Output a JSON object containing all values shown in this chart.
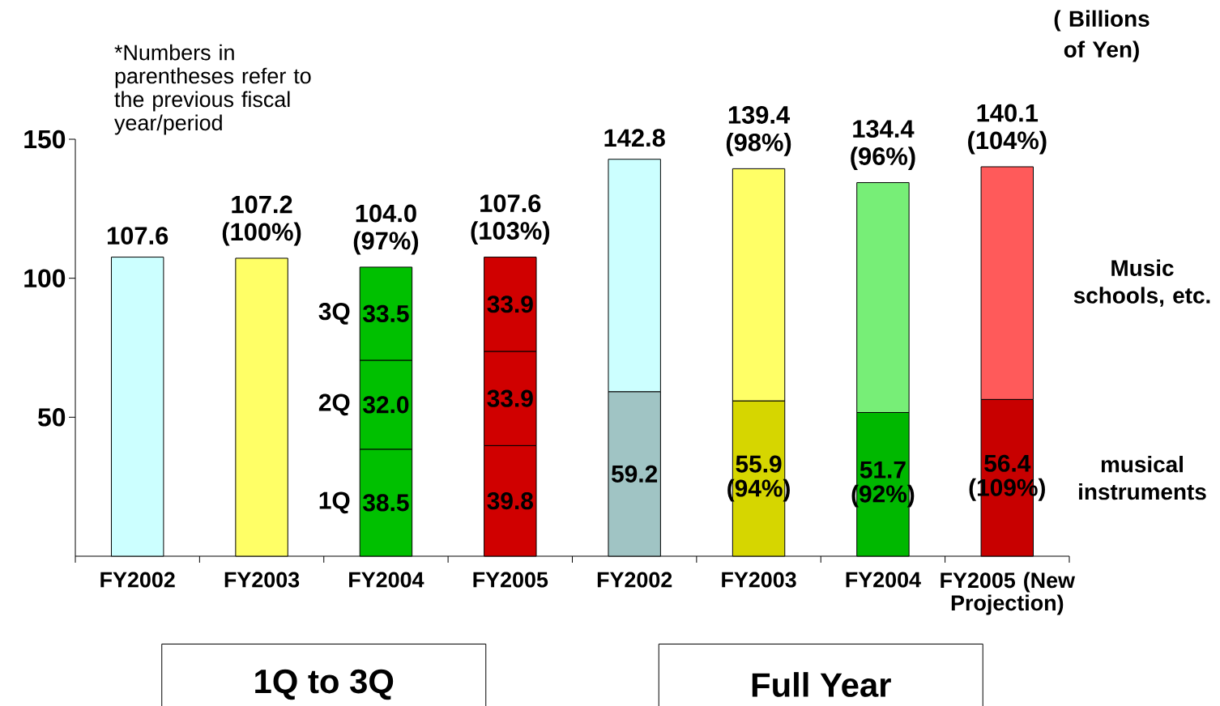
{
  "chart_data": {
    "type": "bar",
    "stacked": true,
    "ylabel": "( Billions of Yen)",
    "categories": [
      "FY2002",
      "FY2003",
      "FY2004",
      "FY2005",
      "FY2002",
      "FY2003",
      "FY2004",
      "FY2005 (New Projection)"
    ],
    "series": [
      {
        "colors": [
          "#ccffff",
          "#ffff66",
          null,
          null,
          null,
          null,
          null,
          null
        ],
        "values": [
          107.6,
          107.2,
          null,
          null,
          null,
          null,
          null,
          null
        ]
      },
      {
        "name": "1Q",
        "colors": [
          null,
          null,
          "#00c000",
          "#d00000",
          null,
          null,
          null,
          null
        ],
        "values": [
          null,
          null,
          38.5,
          39.8,
          null,
          null,
          null,
          null
        ],
        "value_labels": [
          null,
          null,
          "38.5",
          "39.8",
          null,
          null,
          null,
          null
        ]
      },
      {
        "name": "2Q",
        "colors": [
          null,
          null,
          "#00c000",
          "#d00000",
          null,
          null,
          null,
          null
        ],
        "values": [
          null,
          null,
          32.0,
          33.9,
          null,
          null,
          null,
          null
        ],
        "value_labels": [
          null,
          null,
          "32.0",
          "33.9",
          null,
          null,
          null,
          null
        ]
      },
      {
        "name": "3Q",
        "colors": [
          null,
          null,
          "#00c000",
          "#d00000",
          null,
          null,
          null,
          null
        ],
        "values": [
          null,
          null,
          33.5,
          33.9,
          null,
          null,
          null,
          null
        ],
        "value_labels": [
          null,
          null,
          "33.5",
          "33.9",
          null,
          null,
          null,
          null
        ]
      },
      {
        "name": "musical instruments",
        "colors": [
          null,
          null,
          null,
          null,
          "#a0c4c4",
          "#d6d600",
          "#00b800",
          "#c80000"
        ],
        "values": [
          null,
          null,
          null,
          null,
          59.2,
          55.9,
          51.7,
          56.4
        ],
        "value_labels": [
          null,
          null,
          null,
          null,
          "59.2",
          "55.9 (94%)",
          "51.7 (92%)",
          "56.4 (109%)"
        ]
      },
      {
        "name": "Music schools, etc.",
        "colors": [
          null,
          null,
          null,
          null,
          "#ccffff",
          "#ffff66",
          "#77ee77",
          "#ff5a5a"
        ],
        "values": [
          null,
          null,
          null,
          null,
          83.6,
          83.5,
          82.7,
          83.7
        ]
      }
    ],
    "totals": [
      "107.6",
      "107.2 (100%)",
      "104.0 (97%)",
      "107.6 (103%)",
      "142.8",
      "139.4 (98%)",
      "134.4 (96%)",
      "140.1 (104%)"
    ],
    "ylim": [
      0,
      150
    ],
    "yticks": [
      50,
      100,
      150
    ],
    "annotations": [
      "*Numbers in parentheses refer to the previous fiscal year/period",
      "1Q to 3Q",
      "Full Year"
    ]
  }
}
